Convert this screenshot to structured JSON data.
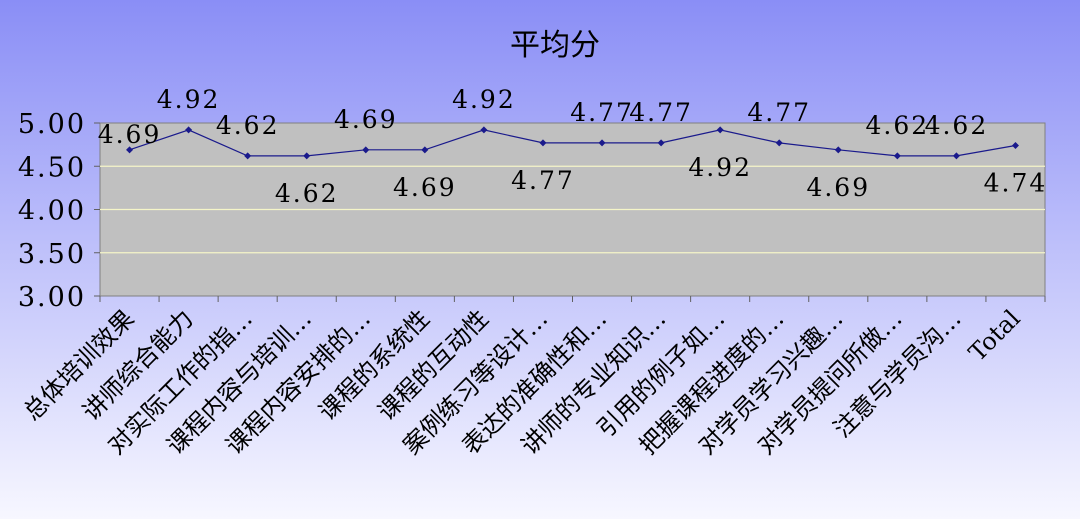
{
  "chart_data": {
    "type": "line",
    "title": "平均分",
    "xlabel": "",
    "ylabel": "",
    "ylim": [
      3.0,
      5.0
    ],
    "ytick_step": 0.5,
    "grid": true,
    "legend": "none",
    "categories": [
      "总体培训效果",
      "讲师综合能力",
      "对实际工作的指…",
      "课程内容与培训…",
      "课程内容安排的…",
      "课程的系统性",
      "课程的互动性",
      "案例练习等设计…",
      "表达的准确性和…",
      "讲师的专业知识…",
      "引用的例子如…",
      "把握课程进度的…",
      "对学员学习兴趣…",
      "对学员提问所做…",
      "注意与学员沟…",
      "Total"
    ],
    "series": [
      {
        "values": [
          4.69,
          4.92,
          4.62,
          4.62,
          4.69,
          4.69,
          4.92,
          4.77,
          4.77,
          4.77,
          4.92,
          4.77,
          4.69,
          4.62,
          4.62,
          4.74
        ],
        "labels": [
          "4.69",
          "4.92",
          "4.62",
          "4.62",
          "4.69",
          "4.69",
          "4.92",
          "4.77",
          "4.77",
          "4.77",
          "4.92",
          "4.77",
          "4.69",
          "4.62",
          "4.62",
          "4.74"
        ],
        "label_side": [
          "mid",
          "above",
          "above",
          "below",
          "above",
          "below",
          "above",
          "below",
          "above",
          "above",
          "below",
          "above",
          "below",
          "above",
          "above",
          "below"
        ]
      }
    ],
    "colors": {
      "background_top": "#8a8ef6",
      "background_bottom": "#f7f7ff",
      "plot_area": "#c0c0c0",
      "gridline": "#f5f5c8",
      "line": "#1a1a8c",
      "text": "#000000"
    }
  }
}
